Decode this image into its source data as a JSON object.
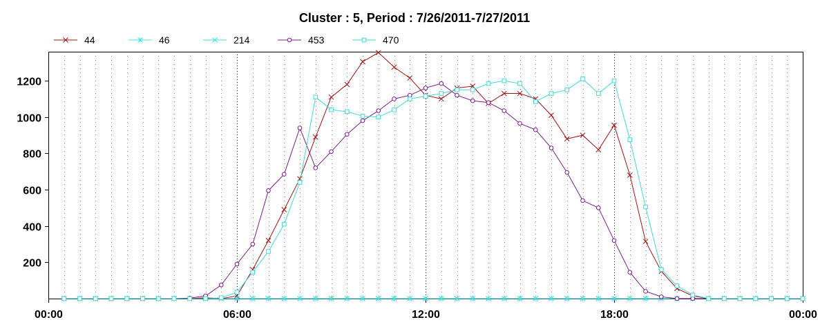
{
  "chart_data": {
    "type": "line",
    "title": "Cluster : 5, Period : 7/26/2011-7/27/2011",
    "xlabel": "",
    "ylabel": "",
    "legend_position": "top-left",
    "grid": {
      "vertical": true,
      "horizontal": false
    },
    "x_range_hours": [
      0,
      24
    ],
    "ylim": [
      0,
      1360
    ],
    "x_ticks": [
      {
        "hour": 0,
        "label": "00:00"
      },
      {
        "hour": 6,
        "label": "06:00"
      },
      {
        "hour": 12,
        "label": "12:00"
      },
      {
        "hour": 18,
        "label": "18:00"
      },
      {
        "hour": 24,
        "label": "00:00"
      }
    ],
    "y_ticks": [
      200,
      400,
      600,
      800,
      1000,
      1200
    ],
    "x": [
      0.5,
      1.0,
      1.5,
      2.0,
      2.5,
      3.0,
      3.5,
      4.0,
      4.5,
      5.0,
      5.5,
      6.0,
      6.5,
      7.0,
      7.5,
      8.0,
      8.5,
      9.0,
      9.5,
      10.0,
      10.5,
      11.0,
      11.5,
      12.0,
      12.5,
      13.0,
      13.5,
      14.0,
      14.5,
      15.0,
      15.5,
      16.0,
      16.5,
      17.0,
      17.5,
      18.0,
      18.5,
      19.0,
      19.5,
      20.0,
      20.5,
      21.0,
      21.5,
      22.0,
      22.5,
      23.0,
      23.5,
      24.0
    ],
    "series": [
      {
        "name": "44",
        "color": "#a01010",
        "marker": "x",
        "values": [
          0,
          0,
          0,
          0,
          0,
          0,
          0,
          0,
          0,
          5,
          0,
          15,
          160,
          320,
          490,
          660,
          890,
          1110,
          1180,
          1305,
          1355,
          1275,
          1215,
          1120,
          1100,
          1160,
          1170,
          1075,
          1130,
          1130,
          1100,
          1010,
          880,
          900,
          820,
          955,
          680,
          315,
          150,
          55,
          15,
          0,
          0,
          0,
          0,
          0,
          0,
          0
        ]
      },
      {
        "name": "46",
        "color": "#40e0e0",
        "marker": "star",
        "values": [
          0,
          0,
          0,
          0,
          0,
          0,
          0,
          0,
          0,
          0,
          0,
          0,
          0,
          0,
          0,
          0,
          0,
          0,
          0,
          0,
          0,
          0,
          0,
          0,
          0,
          0,
          0,
          0,
          0,
          0,
          0,
          0,
          0,
          0,
          0,
          0,
          0,
          0,
          0,
          0,
          0,
          0,
          0,
          0,
          0,
          0,
          0,
          0
        ]
      },
      {
        "name": "214",
        "color": "#40e0e0",
        "marker": "x",
        "values": [
          0,
          0,
          0,
          0,
          0,
          0,
          0,
          0,
          0,
          0,
          0,
          0,
          0,
          0,
          0,
          0,
          0,
          0,
          0,
          0,
          0,
          0,
          0,
          0,
          0,
          0,
          0,
          0,
          0,
          0,
          0,
          0,
          0,
          0,
          0,
          0,
          0,
          0,
          0,
          0,
          0,
          0,
          0,
          0,
          0,
          0,
          0,
          0
        ]
      },
      {
        "name": "453",
        "color": "#7a1a8a",
        "marker": "circle",
        "values": [
          0,
          0,
          0,
          0,
          0,
          0,
          0,
          0,
          3,
          15,
          75,
          190,
          300,
          595,
          685,
          940,
          720,
          810,
          905,
          980,
          1035,
          1100,
          1120,
          1160,
          1185,
          1120,
          1090,
          1080,
          1035,
          965,
          930,
          830,
          695,
          540,
          500,
          320,
          145,
          40,
          10,
          0,
          0,
          0,
          0,
          0,
          0,
          0,
          0,
          0
        ]
      },
      {
        "name": "470",
        "color": "#40d8d8",
        "marker": "square",
        "values": [
          0,
          0,
          0,
          0,
          0,
          0,
          0,
          0,
          0,
          0,
          5,
          35,
          145,
          260,
          410,
          640,
          1110,
          1040,
          1030,
          1005,
          1000,
          1040,
          1100,
          1115,
          1130,
          1150,
          1150,
          1185,
          1200,
          1185,
          1085,
          1130,
          1150,
          1210,
          1130,
          1200,
          875,
          505,
          160,
          70,
          20,
          0,
          0,
          0,
          0,
          0,
          0,
          0
        ]
      }
    ]
  }
}
